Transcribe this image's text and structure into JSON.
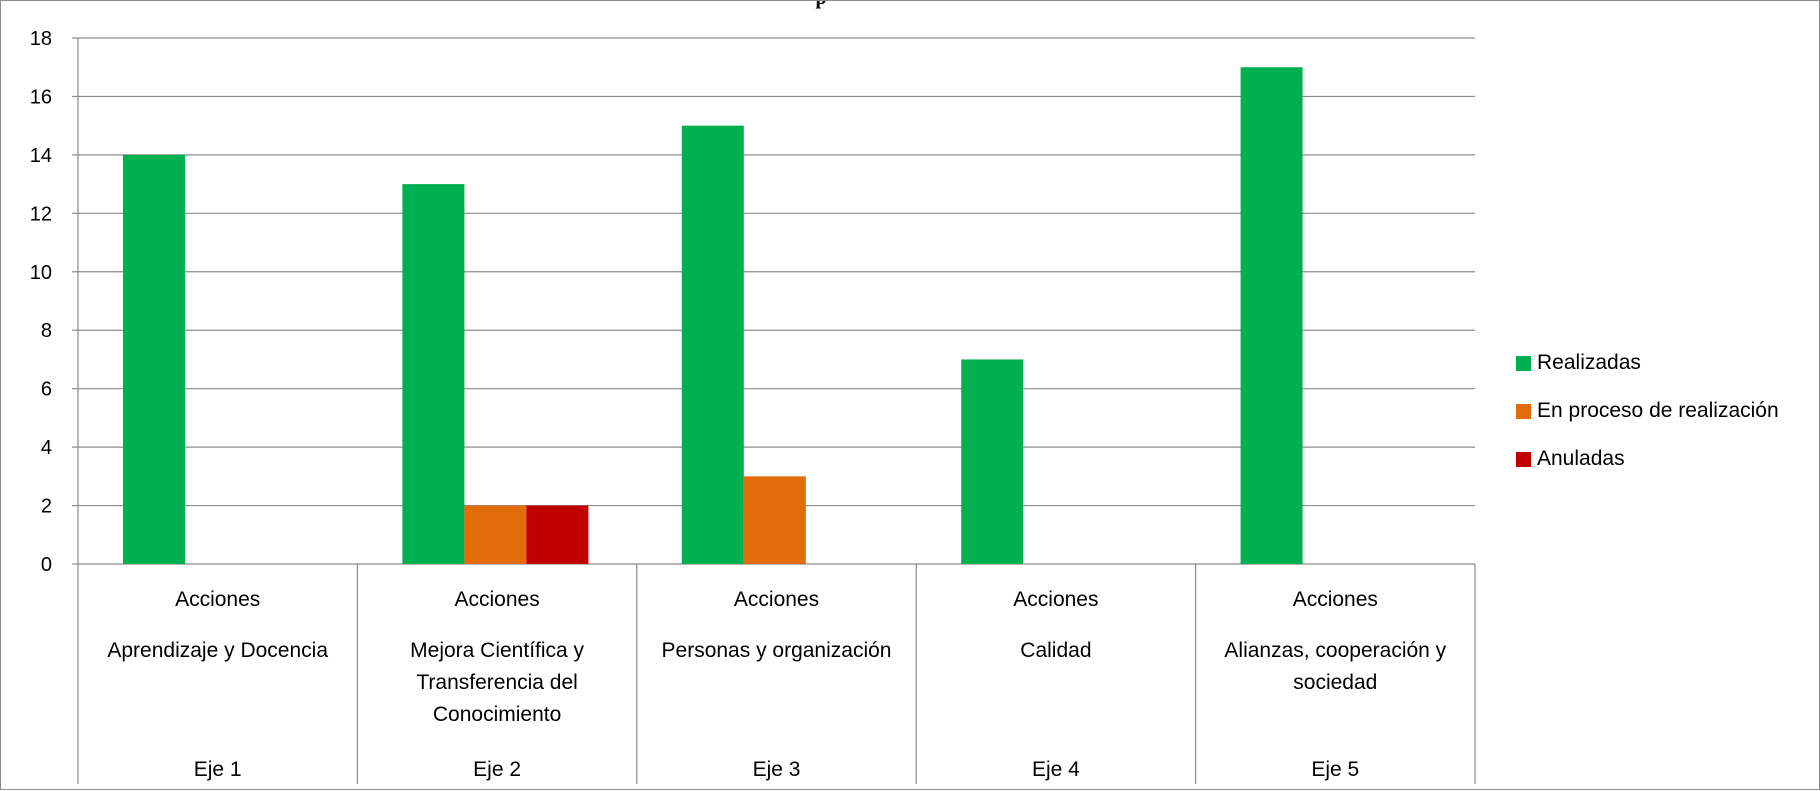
{
  "chart_data": {
    "type": "bar",
    "title": "",
    "title_fragment": "p",
    "ylim": [
      0,
      18
    ],
    "yticks": [
      0,
      2,
      4,
      6,
      8,
      10,
      12,
      14,
      16,
      18
    ],
    "grid": true,
    "legend_position": "right",
    "categories": [
      {
        "line1": "Acciones",
        "line2": [
          "Aprendizaje  y Docencia"
        ],
        "eje": "Eje 1"
      },
      {
        "line1": "Acciones",
        "line2": [
          "Mejora Científica y",
          "Transferencia del",
          "Conocimiento"
        ],
        "eje": "Eje 2"
      },
      {
        "line1": "Acciones",
        "line2": [
          "Personas y organización"
        ],
        "eje": "Eje 3"
      },
      {
        "line1": "Acciones",
        "line2": [
          "Calidad"
        ],
        "eje": "Eje 4"
      },
      {
        "line1": "Acciones",
        "line2": [
          "Alianzas, cooperación y",
          "sociedad"
        ],
        "eje": "Eje 5"
      }
    ],
    "series": [
      {
        "name": "Realizadas",
        "color": "#00b050",
        "values": [
          14,
          13,
          15,
          7,
          17
        ]
      },
      {
        "name": "En proceso de realización",
        "color": "#e36c0a",
        "values": [
          0,
          2,
          3,
          0,
          0
        ]
      },
      {
        "name": "Anuladas",
        "color": "#c00000",
        "values": [
          0,
          2,
          0,
          0,
          0
        ]
      }
    ]
  }
}
